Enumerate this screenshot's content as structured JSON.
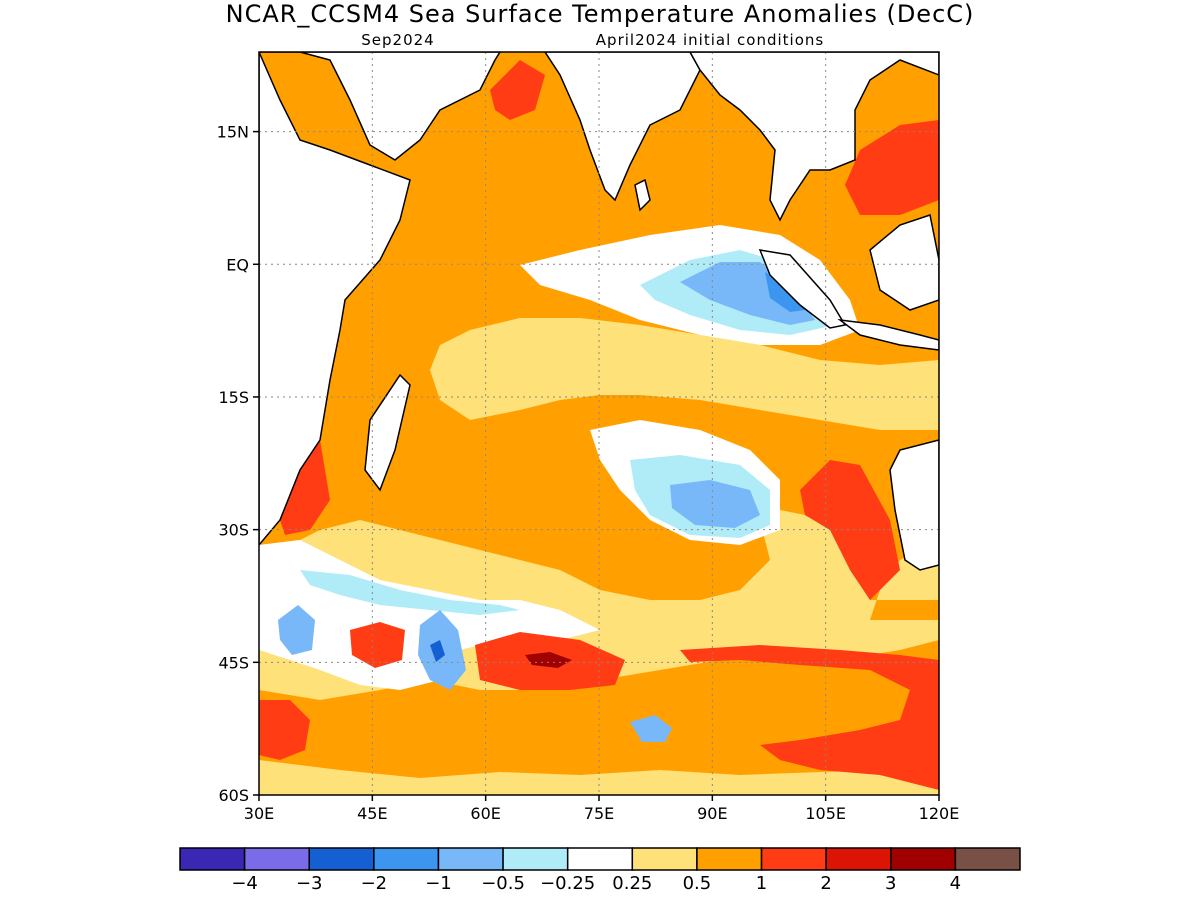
{
  "title": "NCAR_CCSM4 Sea Surface Temperature Anomalies (DecC)",
  "subtitle_left": "Sep2024",
  "subtitle_right": "April2024 initial conditions",
  "map": {
    "lon_range": [
      30,
      120
    ],
    "lat_range": [
      -60,
      24
    ],
    "lat_ticks": [
      {
        "value": 15,
        "label": "15N"
      },
      {
        "value": 0,
        "label": "EQ"
      },
      {
        "value": -15,
        "label": "15S"
      },
      {
        "value": -30,
        "label": "30S"
      },
      {
        "value": -45,
        "label": "45S"
      },
      {
        "value": -60,
        "label": "60S"
      }
    ],
    "lon_ticks": [
      {
        "value": 30,
        "label": "30E"
      },
      {
        "value": 45,
        "label": "45E"
      },
      {
        "value": 60,
        "label": "60E"
      },
      {
        "value": 75,
        "label": "75E"
      },
      {
        "value": 90,
        "label": "90E"
      },
      {
        "value": 105,
        "label": "105E"
      },
      {
        "value": 120,
        "label": "120E"
      }
    ],
    "grid": true
  },
  "colorbar": {
    "colors": [
      "#3a28b4",
      "#7a6ce8",
      "#1460d2",
      "#3c96f0",
      "#78b8f8",
      "#b0ecf8",
      "#ffffff",
      "#ffe17a",
      "#ffa000",
      "#ff3c14",
      "#dc1406",
      "#a00000",
      "#785046"
    ],
    "labels": [
      "−4",
      "−3",
      "−2",
      "−1",
      "−0.5",
      "−0.25",
      "0.25",
      "0.5",
      "1",
      "2",
      "3",
      "4"
    ]
  }
}
